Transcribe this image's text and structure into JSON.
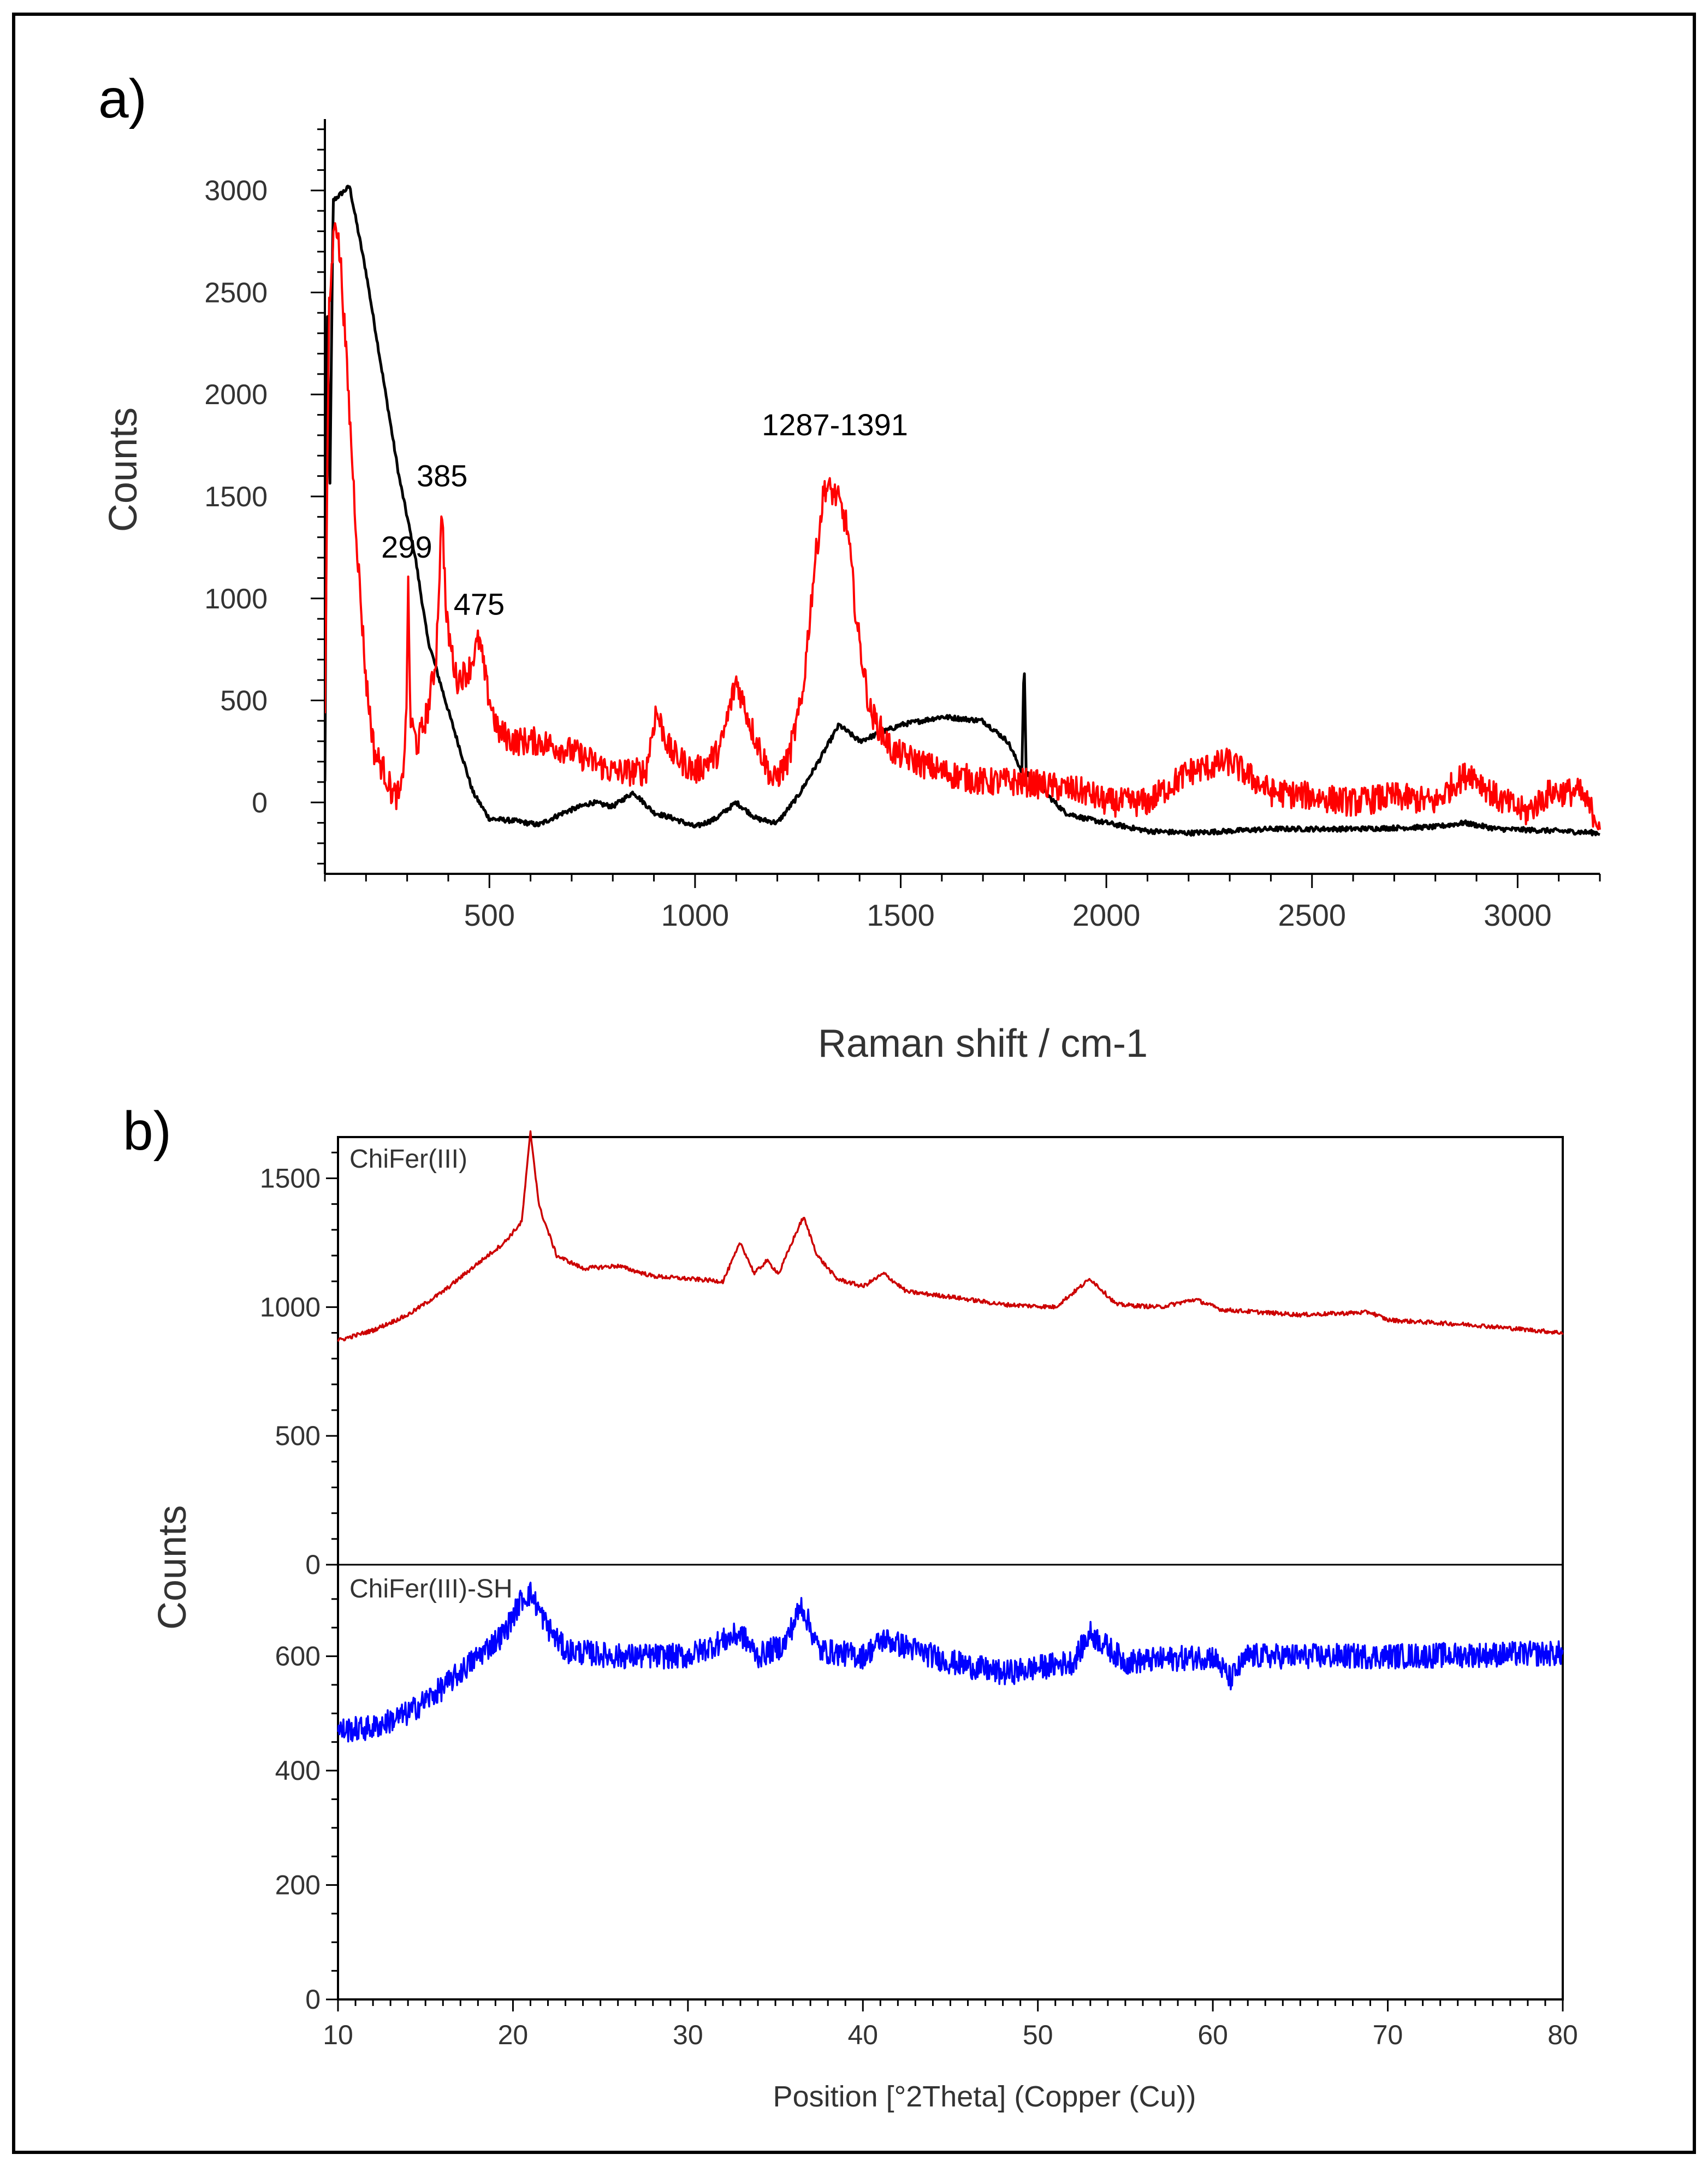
{
  "figure": {
    "border_color": "#000000"
  },
  "chart_data": [
    {
      "panel_label": "a)",
      "type": "line",
      "title": "",
      "xlabel": "Raman shift / cm-1",
      "ylabel": "Counts",
      "xlim": [
        100,
        3200
      ],
      "ylim": [
        -350,
        3350
      ],
      "xticks": [
        "500",
        "1000",
        "1500",
        "2000",
        "2500",
        "3000"
      ],
      "yticks": [
        "0",
        "500",
        "1000",
        "1500",
        "2000",
        "2500",
        "3000"
      ],
      "annotations": [
        {
          "text": "299",
          "x": 299,
          "y": 1200
        },
        {
          "text": "385",
          "x": 385,
          "y": 1550
        },
        {
          "text": "475",
          "x": 475,
          "y": 920
        },
        {
          "text": "1287-1391",
          "x": 1340,
          "y": 1800
        }
      ],
      "series": [
        {
          "name": "red",
          "color": "#ff0000",
          "noise": 70,
          "points": [
            [
              100,
              400
            ],
            [
              110,
              2400
            ],
            [
              125,
              2900
            ],
            [
              140,
              2600
            ],
            [
              160,
              1900
            ],
            [
              180,
              1200
            ],
            [
              200,
              600
            ],
            [
              220,
              250
            ],
            [
              245,
              150
            ],
            [
              265,
              40
            ],
            [
              285,
              30
            ],
            [
              298,
              400
            ],
            [
              302,
              1100
            ],
            [
              308,
              400
            ],
            [
              325,
              280
            ],
            [
              350,
              450
            ],
            [
              370,
              700
            ],
            [
              385,
              1450
            ],
            [
              395,
              900
            ],
            [
              420,
              600
            ],
            [
              450,
              650
            ],
            [
              475,
              800
            ],
            [
              495,
              550
            ],
            [
              520,
              350
            ],
            [
              560,
              300
            ],
            [
              620,
              300
            ],
            [
              700,
              250
            ],
            [
              800,
              150
            ],
            [
              880,
              150
            ],
            [
              905,
              450
            ],
            [
              940,
              250
            ],
            [
              1000,
              150
            ],
            [
              1060,
              250
            ],
            [
              1100,
              600
            ],
            [
              1140,
              350
            ],
            [
              1190,
              100
            ],
            [
              1225,
              200
            ],
            [
              1260,
              500
            ],
            [
              1290,
              1150
            ],
            [
              1315,
              1550
            ],
            [
              1345,
              1500
            ],
            [
              1370,
              1350
            ],
            [
              1395,
              850
            ],
            [
              1425,
              450
            ],
            [
              1480,
              250
            ],
            [
              1540,
              200
            ],
            [
              1600,
              150
            ],
            [
              1700,
              100
            ],
            [
              1800,
              100
            ],
            [
              1950,
              50
            ],
            [
              2000,
              0
            ],
            [
              2100,
              0
            ],
            [
              2200,
              150
            ],
            [
              2300,
              200
            ],
            [
              2400,
              50
            ],
            [
              2500,
              30
            ],
            [
              2600,
              0
            ],
            [
              2700,
              30
            ],
            [
              2800,
              0
            ],
            [
              2850,
              100
            ],
            [
              2885,
              150
            ],
            [
              2950,
              20
            ],
            [
              3020,
              -50
            ],
            [
              3080,
              50
            ],
            [
              3150,
              50
            ],
            [
              3200,
              -100
            ]
          ]
        },
        {
          "name": "black",
          "color": "#000000",
          "noise": 12,
          "points": [
            [
              100,
              100
            ],
            [
              106,
              2400
            ],
            [
              112,
              1500
            ],
            [
              120,
              2950
            ],
            [
              160,
              3020
            ],
            [
              200,
              2600
            ],
            [
              240,
              2100
            ],
            [
              280,
              1600
            ],
            [
              320,
              1200
            ],
            [
              350,
              800
            ],
            [
              400,
              450
            ],
            [
              460,
              50
            ],
            [
              500,
              -80
            ],
            [
              560,
              -90
            ],
            [
              620,
              -110
            ],
            [
              680,
              -50
            ],
            [
              750,
              0
            ],
            [
              800,
              -20
            ],
            [
              850,
              50
            ],
            [
              900,
              -50
            ],
            [
              950,
              -80
            ],
            [
              1000,
              -120
            ],
            [
              1050,
              -80
            ],
            [
              1100,
              0
            ],
            [
              1150,
              -80
            ],
            [
              1200,
              -100
            ],
            [
              1250,
              30
            ],
            [
              1300,
              200
            ],
            [
              1350,
              380
            ],
            [
              1400,
              300
            ],
            [
              1500,
              380
            ],
            [
              1600,
              420
            ],
            [
              1700,
              400
            ],
            [
              1760,
              300
            ],
            [
              1795,
              150
            ],
            [
              1800,
              730
            ],
            [
              1805,
              150
            ],
            [
              1850,
              50
            ],
            [
              1900,
              -50
            ],
            [
              1950,
              -80
            ],
            [
              2000,
              -100
            ],
            [
              2100,
              -140
            ],
            [
              2200,
              -150
            ],
            [
              2400,
              -130
            ],
            [
              2600,
              -130
            ],
            [
              2800,
              -120
            ],
            [
              2870,
              -100
            ],
            [
              2950,
              -130
            ],
            [
              3100,
              -140
            ],
            [
              3200,
              -150
            ]
          ]
        }
      ]
    },
    {
      "panel_label": "b)",
      "type": "line",
      "title": "",
      "xlabel": "Position [°2Theta] (Copper (Cu))",
      "ylabel": "Counts",
      "xlim": [
        10,
        80
      ],
      "xticks": [
        "10",
        "20",
        "30",
        "40",
        "50",
        "60",
        "70",
        "80"
      ],
      "subplots": [
        {
          "label": "ChiFer(III)",
          "color": "#cc0000",
          "noise": 8,
          "ylim": [
            0,
            1660
          ],
          "yticks": [
            "0",
            "500",
            "1000",
            "1500"
          ],
          "points": [
            [
              10,
              870
            ],
            [
              12,
              910
            ],
            [
              14,
              970
            ],
            [
              16,
              1060
            ],
            [
              18,
              1170
            ],
            [
              19.5,
              1250
            ],
            [
              20.5,
              1330
            ],
            [
              21,
              1680
            ],
            [
              21.5,
              1390
            ],
            [
              22.5,
              1200
            ],
            [
              24,
              1150
            ],
            [
              26,
              1160
            ],
            [
              28,
              1120
            ],
            [
              30,
              1110
            ],
            [
              32,
              1100
            ],
            [
              33,
              1250
            ],
            [
              33.8,
              1130
            ],
            [
              34.5,
              1180
            ],
            [
              35.2,
              1130
            ],
            [
              36,
              1260
            ],
            [
              36.6,
              1350
            ],
            [
              37.4,
              1200
            ],
            [
              38.5,
              1110
            ],
            [
              40,
              1080
            ],
            [
              41.2,
              1130
            ],
            [
              42.5,
              1060
            ],
            [
              45,
              1040
            ],
            [
              48,
              1010
            ],
            [
              51,
              1000
            ],
            [
              53,
              1110
            ],
            [
              54.5,
              1010
            ],
            [
              57,
              1000
            ],
            [
              59,
              1030
            ],
            [
              60.5,
              990
            ],
            [
              65,
              970
            ],
            [
              69,
              980
            ],
            [
              70,
              950
            ],
            [
              75,
              930
            ],
            [
              80,
              900
            ]
          ]
        },
        {
          "label": "ChiFer(III)-SH",
          "color": "#0000ff",
          "noise": 22,
          "ylim": [
            0,
            760
          ],
          "yticks": [
            "0",
            "200",
            "400",
            "600"
          ],
          "points": [
            [
              10,
              470
            ],
            [
              12,
              475
            ],
            [
              14,
              500
            ],
            [
              16,
              545
            ],
            [
              18,
              600
            ],
            [
              19.5,
              640
            ],
            [
              20.5,
              700
            ],
            [
              21,
              710
            ],
            [
              22,
              650
            ],
            [
              23,
              610
            ],
            [
              26,
              600
            ],
            [
              30,
              600
            ],
            [
              33,
              640
            ],
            [
              34,
              600
            ],
            [
              35.5,
              620
            ],
            [
              36.5,
              690
            ],
            [
              37.5,
              610
            ],
            [
              40,
              600
            ],
            [
              41.2,
              630
            ],
            [
              45,
              590
            ],
            [
              48,
              570
            ],
            [
              52,
              590
            ],
            [
              53,
              640
            ],
            [
              55,
              590
            ],
            [
              60,
              600
            ],
            [
              61,
              560
            ],
            [
              62,
              600
            ],
            [
              70,
              600
            ],
            [
              80,
              605
            ]
          ]
        }
      ]
    }
  ]
}
